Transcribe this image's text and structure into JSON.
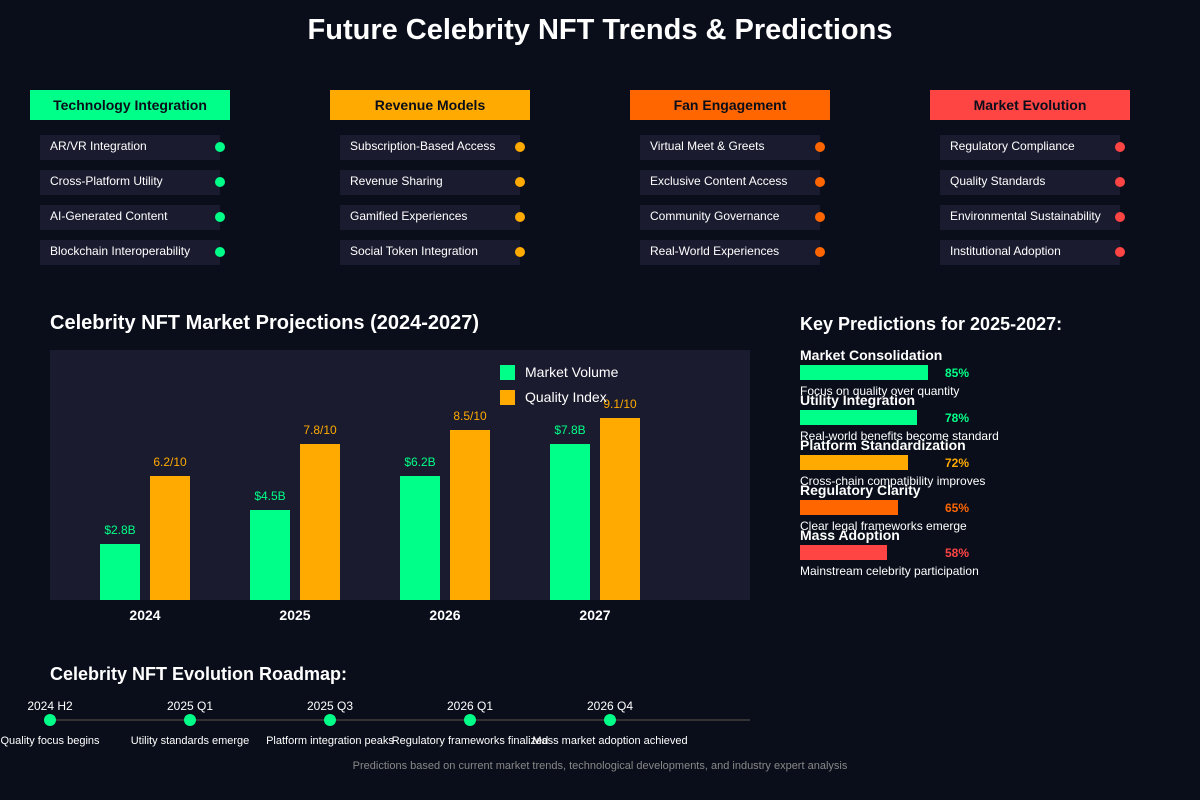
{
  "title": "Future Celebrity NFT Trends & Predictions",
  "colors": {
    "green": "#00ff88",
    "yellow": "#ffaa00",
    "orange": "#ff6600",
    "red": "#ff4444",
    "panel": "#1a1b2e",
    "background": "#0a0e1a"
  },
  "categories": [
    {
      "name": "Technology Integration",
      "color": "#00ff88",
      "items": [
        "AR/VR Integration",
        "Cross-Platform Utility",
        "AI-Generated Content",
        "Blockchain Interoperability"
      ]
    },
    {
      "name": "Revenue Models",
      "color": "#ffaa00",
      "items": [
        "Subscription-Based Access",
        "Revenue Sharing",
        "Gamified Experiences",
        "Social Token Integration"
      ]
    },
    {
      "name": "Fan Engagement",
      "color": "#ff6600",
      "items": [
        "Virtual Meet & Greets",
        "Exclusive Content Access",
        "Community Governance",
        "Real-World Experiences"
      ]
    },
    {
      "name": "Market Evolution",
      "color": "#ff4444",
      "items": [
        "Regulatory Compliance",
        "Quality Standards",
        "Environmental Sustainability",
        "Institutional Adoption"
      ]
    }
  ],
  "chart_data": {
    "type": "bar",
    "title": "Celebrity NFT Market Projections (2024-2027)",
    "categories": [
      "2024",
      "2025",
      "2026",
      "2027"
    ],
    "series": [
      {
        "name": "Market Volume",
        "color": "#00ff88",
        "values": [
          2.8,
          4.5,
          6.2,
          7.8
        ],
        "labels": [
          "$2.8B",
          "$4.5B",
          "$6.2B",
          "$7.8B"
        ]
      },
      {
        "name": "Quality Index",
        "color": "#ffaa00",
        "values": [
          6.2,
          7.8,
          8.5,
          9.1
        ],
        "labels": [
          "6.2/10",
          "7.8/10",
          "8.5/10",
          "9.1/10"
        ]
      }
    ],
    "legend": "top-right",
    "grid": false
  },
  "predictions": {
    "title": "Key Predictions for 2025-2027:",
    "items": [
      {
        "name": "Market Consolidation",
        "percent": 85,
        "label": "85%",
        "desc": "Focus on quality over quantity",
        "color": "#00ff88"
      },
      {
        "name": "Utility Integration",
        "percent": 78,
        "label": "78%",
        "desc": "Real-world benefits become standard",
        "color": "#00ff88"
      },
      {
        "name": "Platform Standardization",
        "percent": 72,
        "label": "72%",
        "desc": "Cross-chain compatibility improves",
        "color": "#ffaa00"
      },
      {
        "name": "Regulatory Clarity",
        "percent": 65,
        "label": "65%",
        "desc": "Clear legal frameworks emerge",
        "color": "#ff6600"
      },
      {
        "name": "Mass Adoption",
        "percent": 58,
        "label": "58%",
        "desc": "Mainstream celebrity participation",
        "color": "#ff4444"
      }
    ]
  },
  "roadmap": {
    "title": "Celebrity NFT Evolution Roadmap:",
    "items": [
      {
        "date": "2024 H2",
        "desc": "Quality focus begins"
      },
      {
        "date": "2025 Q1",
        "desc": "Utility standards emerge"
      },
      {
        "date": "2025 Q3",
        "desc": "Platform integration peaks"
      },
      {
        "date": "2026 Q1",
        "desc": "Regulatory frameworks finalized"
      },
      {
        "date": "2026 Q4",
        "desc": "Mass market adoption achieved"
      }
    ]
  },
  "footer": "Predictions based on current market trends, technological developments, and industry expert analysis"
}
